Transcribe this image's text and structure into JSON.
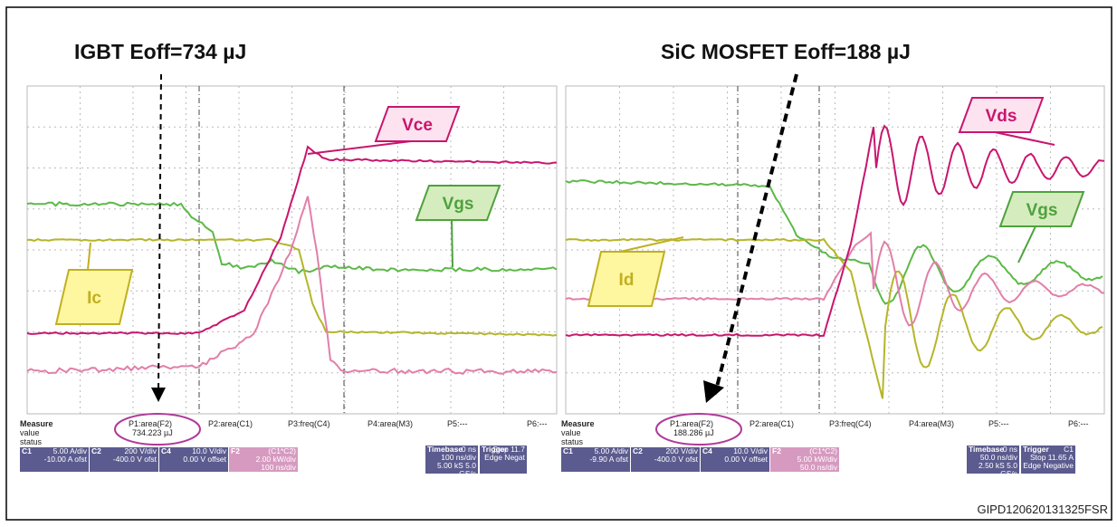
{
  "figure_id": "GIPD120620131325FSR",
  "panels": [
    {
      "title": "IGBT Eoff=734 µJ",
      "labels": {
        "v_main": "Vce",
        "v_gate": "Vgs",
        "current": "Ic"
      },
      "measure": {
        "heading": "Measure",
        "rows": [
          "value",
          "status"
        ],
        "params": [
          "P1:area(F2)",
          "P2:area(C1)",
          "P3:freq(C4)",
          "P4:area(M3)",
          "P5:---",
          "P6:---"
        ],
        "p1_value": "734.223 µJ"
      },
      "channels": [
        {
          "name": "C1",
          "lines": [
            "5.00 A/div",
            "-10.00 A ofst"
          ]
        },
        {
          "name": "C2",
          "lines": [
            "200 V/div",
            "-400.0 V ofst"
          ]
        },
        {
          "name": "C4",
          "lines": [
            "10.0 V/div",
            "0.00 V offset"
          ]
        },
        {
          "name": "F2",
          "lines": [
            "(C1*C2)",
            "2.00 kW/div",
            "100 ns/div"
          ]
        }
      ],
      "timebase": {
        "name": "Timebase",
        "lines": [
          "0 ns",
          "100 ns/div",
          "5.00 kS   5.0 GS/s"
        ]
      },
      "trigger": {
        "name": "Trigger",
        "lines": [
          "Stop   11.7",
          "Edge   Negat"
        ]
      }
    },
    {
      "title": "SiC MOSFET Eoff=188 µJ",
      "labels": {
        "v_main": "Vds",
        "v_gate": "Vgs",
        "current": "Id"
      },
      "measure": {
        "heading": "Measure",
        "rows": [
          "value",
          "status"
        ],
        "params": [
          "P1:area(F2)",
          "P2:area(C1)",
          "P3:freq(C4)",
          "P4:area(M3)",
          "P5:---",
          "P6:---"
        ],
        "p1_value": "188.286 µJ"
      },
      "channels": [
        {
          "name": "C1",
          "lines": [
            "5.00 A/div",
            "-9.90 A ofst"
          ]
        },
        {
          "name": "C2",
          "lines": [
            "200 V/div",
            "-400.0 V ofst"
          ]
        },
        {
          "name": "C4",
          "lines": [
            "10.0 V/div",
            "0.00 V offset"
          ]
        },
        {
          "name": "F2",
          "lines": [
            "(C1*C2)",
            "5.00 kW/div",
            "50.0 ns/div"
          ]
        }
      ],
      "timebase": {
        "name": "Timebase",
        "lines": [
          "0 ns",
          "50.0 ns/div",
          "2.50 kS   5.0 GS/s"
        ]
      },
      "trigger": {
        "name": "Trigger",
        "lines": [
          "C1",
          "Stop   11.65 A",
          "Edge   Negative"
        ]
      }
    }
  ]
}
